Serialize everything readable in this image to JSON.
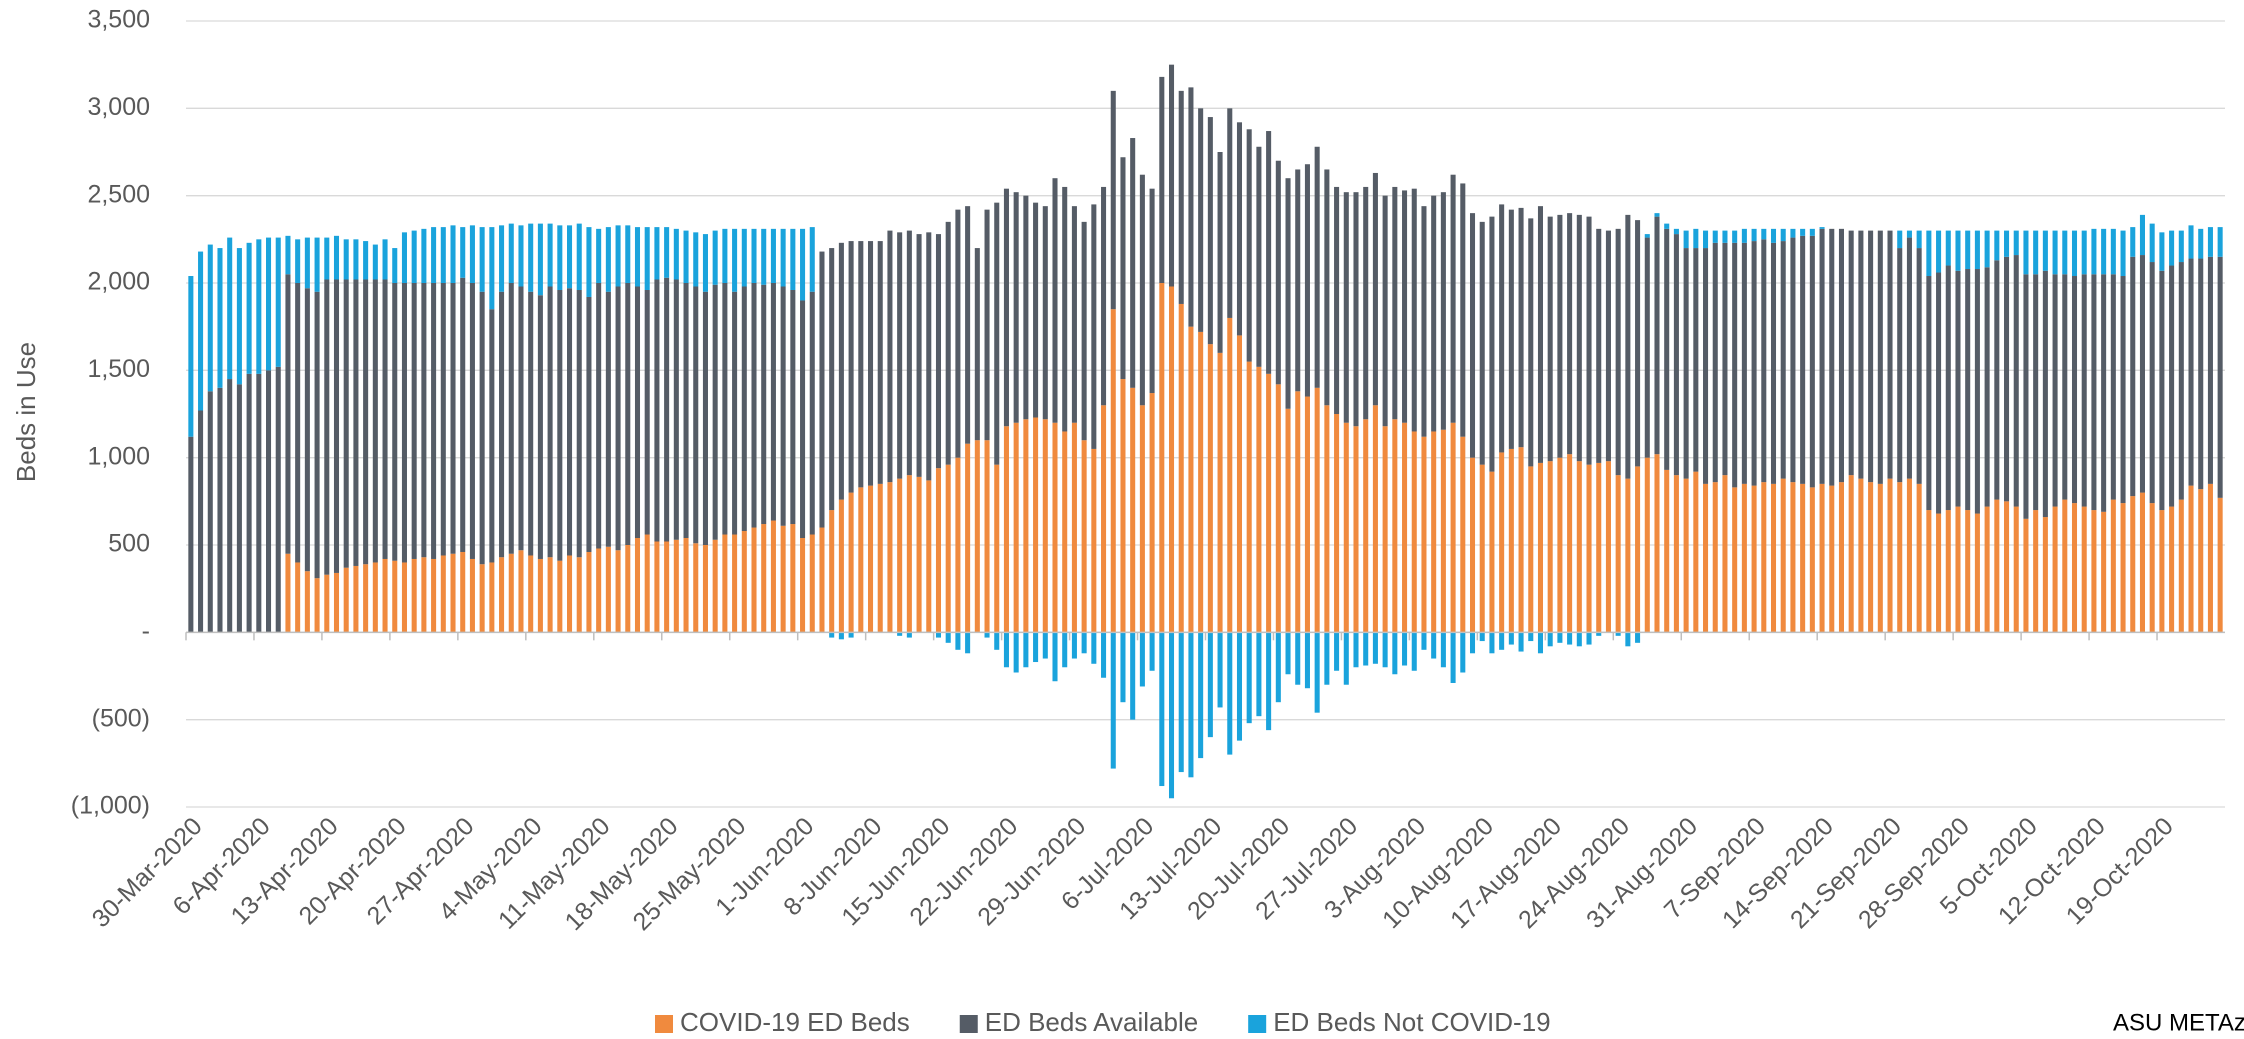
{
  "chart_data": {
    "type": "stacked_bar",
    "y_label": "Beds in Use",
    "annotation": "ASU METAz",
    "legend": "bottom",
    "grid": true,
    "ylim": [
      -1000,
      3500
    ],
    "yticks": [
      {
        "value": 3500,
        "label": "3,500"
      },
      {
        "value": 3000,
        "label": "3,000"
      },
      {
        "value": 2500,
        "label": "2,500"
      },
      {
        "value": 2000,
        "label": "2,000"
      },
      {
        "value": 1500,
        "label": "1,500"
      },
      {
        "value": 1000,
        "label": "1,000"
      },
      500,
      {
        "value": 0,
        "label": "-"
      },
      {
        "value": -500,
        "label": "(500)"
      },
      {
        "value": -1000,
        "label": "(1,000)"
      }
    ],
    "categories": [
      "30-Mar-2020",
      null,
      null,
      null,
      null,
      null,
      null,
      "6-Apr-2020",
      null,
      null,
      null,
      null,
      null,
      null,
      "13-Apr-2020",
      null,
      null,
      null,
      null,
      null,
      null,
      "20-Apr-2020",
      null,
      null,
      null,
      null,
      null,
      null,
      "27-Apr-2020",
      null,
      null,
      null,
      null,
      null,
      null,
      "4-May-2020",
      null,
      null,
      null,
      null,
      null,
      null,
      "11-May-2020",
      null,
      null,
      null,
      null,
      null,
      null,
      "18-May-2020",
      null,
      null,
      null,
      null,
      null,
      null,
      "25-May-2020",
      null,
      null,
      null,
      null,
      null,
      null,
      "1-Jun-2020",
      null,
      null,
      null,
      null,
      null,
      null,
      "8-Jun-2020",
      null,
      null,
      null,
      null,
      null,
      null,
      "15-Jun-2020",
      null,
      null,
      null,
      null,
      null,
      null,
      "22-Jun-2020",
      null,
      null,
      null,
      null,
      null,
      null,
      "29-Jun-2020",
      null,
      null,
      null,
      null,
      null,
      null,
      "6-Jul-2020",
      null,
      null,
      null,
      null,
      null,
      null,
      "13-Jul-2020",
      null,
      null,
      null,
      null,
      null,
      null,
      "20-Jul-2020",
      null,
      null,
      null,
      null,
      null,
      null,
      "27-Jul-2020",
      null,
      null,
      null,
      null,
      null,
      null,
      "3-Aug-2020",
      null,
      null,
      null,
      null,
      null,
      null,
      "10-Aug-2020",
      null,
      null,
      null,
      null,
      null,
      null,
      "17-Aug-2020",
      null,
      null,
      null,
      null,
      null,
      null,
      "24-Aug-2020",
      null,
      null,
      null,
      null,
      null,
      null,
      "31-Aug-2020",
      null,
      null,
      null,
      null,
      null,
      null,
      "7-Sep-2020",
      null,
      null,
      null,
      null,
      null,
      null,
      "14-Sep-2020",
      null,
      null,
      null,
      null,
      null,
      null,
      "21-Sep-2020",
      null,
      null,
      null,
      null,
      null,
      null,
      "28-Sep-2020",
      null,
      null,
      null,
      null,
      null,
      null,
      "5-Oct-2020",
      null,
      null,
      null,
      null,
      null,
      null,
      "12-Oct-2020",
      null,
      null,
      null,
      null,
      null,
      null,
      "19-Oct-2020",
      null,
      null,
      null,
      null,
      null,
      null
    ],
    "series": [
      {
        "name": "COVID-19 ED Beds",
        "color": "#f08a3e",
        "values": [
          0,
          0,
          0,
          0,
          0,
          0,
          0,
          0,
          0,
          0,
          450,
          400,
          350,
          310,
          330,
          340,
          370,
          380,
          390,
          400,
          420,
          410,
          400,
          420,
          430,
          420,
          440,
          450,
          460,
          420,
          390,
          400,
          430,
          450,
          470,
          440,
          420,
          430,
          410,
          440,
          430,
          460,
          480,
          490,
          470,
          500,
          540,
          560,
          520,
          520,
          530,
          540,
          510,
          500,
          530,
          560,
          560,
          580,
          600,
          620,
          640,
          610,
          620,
          540,
          560,
          600,
          700,
          760,
          800,
          830,
          840,
          850,
          860,
          880,
          900,
          890,
          870,
          940,
          960,
          1000,
          1080,
          1100,
          1100,
          960,
          1180,
          1200,
          1220,
          1230,
          1220,
          1200,
          1150,
          1200,
          1100,
          1050,
          1300,
          1850,
          1450,
          1400,
          1300,
          1370,
          2000,
          1980,
          1880,
          1750,
          1720,
          1650,
          1600,
          1800,
          1700,
          1550,
          1520,
          1480,
          1420,
          1280,
          1380,
          1350,
          1400,
          1300,
          1250,
          1200,
          1180,
          1220,
          1300,
          1180,
          1220,
          1200,
          1150,
          1120,
          1150,
          1160,
          1200,
          1120,
          1000,
          960,
          920,
          1030,
          1050,
          1060,
          950,
          970,
          980,
          1000,
          1020,
          980,
          960,
          970,
          980,
          900,
          880,
          950,
          1000,
          1020,
          930,
          900,
          880,
          920,
          850,
          860,
          900,
          830,
          850,
          840,
          860,
          850,
          880,
          860,
          850,
          830,
          850,
          840,
          860,
          900,
          880,
          860,
          850,
          880,
          860,
          880,
          850,
          700,
          680,
          700,
          720,
          700,
          680,
          720,
          760,
          750,
          720,
          650,
          700,
          660,
          720,
          760,
          740,
          720,
          700,
          690,
          760,
          740,
          780,
          800,
          740,
          700,
          720,
          760,
          840,
          820,
          850,
          770
        ]
      },
      {
        "name": "ED Beds Available",
        "color": "#555c66",
        "values": [
          1120,
          1270,
          1380,
          1400,
          1450,
          1420,
          1480,
          1480,
          1500,
          1520,
          1600,
          1600,
          1620,
          1640,
          1690,
          1680,
          1650,
          1640,
          1630,
          1620,
          1600,
          1590,
          1600,
          1580,
          1570,
          1580,
          1560,
          1550,
          1570,
          1580,
          1560,
          1450,
          1520,
          1550,
          1510,
          1510,
          1510,
          1550,
          1550,
          1530,
          1530,
          1460,
          1520,
          1460,
          1510,
          1500,
          1440,
          1400,
          1500,
          1510,
          1490,
          1460,
          1470,
          1450,
          1460,
          1440,
          1390,
          1400,
          1400,
          1370,
          1360,
          1370,
          1340,
          1360,
          1390,
          1580,
          1500,
          1470,
          1440,
          1410,
          1400,
          1390,
          1440,
          1410,
          1400,
          1390,
          1420,
          1340,
          1390,
          1420,
          1360,
          1100,
          1320,
          1500,
          1360,
          1320,
          1280,
          1230,
          1220,
          1400,
          1400,
          1240,
          1250,
          1400,
          1250,
          1250,
          1270,
          1430,
          1320,
          1170,
          1180,
          1270,
          1220,
          1370,
          1280,
          1300,
          1150,
          1200,
          1220,
          1330,
          1260,
          1390,
          1280,
          1320,
          1270,
          1330,
          1380,
          1350,
          1300,
          1320,
          1340,
          1330,
          1330,
          1320,
          1330,
          1330,
          1390,
          1320,
          1350,
          1360,
          1420,
          1450,
          1400,
          1390,
          1460,
          1420,
          1370,
          1370,
          1420,
          1470,
          1400,
          1390,
          1380,
          1410,
          1420,
          1340,
          1320,
          1410,
          1510,
          1410,
          1260,
          1360,
          1380,
          1380,
          1320,
          1280,
          1350,
          1370,
          1330,
          1400,
          1380,
          1400,
          1390,
          1380,
          1360,
          1400,
          1420,
          1440,
          1460,
          1470,
          1450,
          1400,
          1420,
          1440,
          1450,
          1420,
          1340,
          1380,
          1350,
          1340,
          1380,
          1400,
          1350,
          1380,
          1400,
          1370,
          1370,
          1400,
          1440,
          1400,
          1350,
          1410,
          1330,
          1290,
          1300,
          1330,
          1350,
          1360,
          1290,
          1300,
          1370,
          1360,
          1380,
          1370,
          1380,
          1360,
          1300,
          1320,
          1300,
          1380
        ]
      },
      {
        "name": "ED Beds Not COVID-19",
        "color": "#1aa3dc",
        "values": [
          920,
          910,
          840,
          800,
          810,
          780,
          750,
          770,
          760,
          740,
          220,
          250,
          290,
          310,
          240,
          250,
          230,
          230,
          220,
          200,
          230,
          200,
          290,
          300,
          310,
          320,
          320,
          330,
          290,
          330,
          370,
          470,
          380,
          340,
          350,
          390,
          410,
          360,
          370,
          360,
          380,
          400,
          310,
          370,
          350,
          330,
          340,
          360,
          300,
          290,
          290,
          300,
          310,
          330,
          310,
          310,
          360,
          330,
          310,
          320,
          310,
          330,
          350,
          410,
          370,
          0,
          -30,
          -40,
          -30,
          0,
          0,
          0,
          0,
          -20,
          -30,
          0,
          0,
          -30,
          -60,
          -100,
          -120,
          0,
          -30,
          -100,
          -200,
          -230,
          -200,
          -170,
          -150,
          -280,
          -200,
          -150,
          -120,
          -180,
          -260,
          -780,
          -400,
          -500,
          -310,
          -220,
          -880,
          -950,
          -800,
          -830,
          -720,
          -600,
          -430,
          -700,
          -620,
          -520,
          -480,
          -560,
          -400,
          -240,
          -300,
          -320,
          -460,
          -300,
          -220,
          -300,
          -200,
          -190,
          -180,
          -200,
          -240,
          -190,
          -220,
          -100,
          -150,
          -200,
          -290,
          -230,
          -120,
          -50,
          -120,
          -100,
          -70,
          -110,
          -50,
          -120,
          -80,
          -60,
          -70,
          -80,
          -70,
          -20,
          0,
          -20,
          -80,
          -60,
          20,
          20,
          30,
          30,
          100,
          110,
          100,
          70,
          70,
          70,
          80,
          70,
          60,
          80,
          70,
          50,
          40,
          40,
          10,
          0,
          0,
          0,
          0,
          0,
          0,
          0,
          100,
          40,
          100,
          260,
          240,
          200,
          230,
          220,
          220,
          210,
          170,
          150,
          140,
          250,
          250,
          230,
          250,
          250,
          260,
          250,
          260,
          260,
          260,
          260,
          170,
          230,
          220,
          220,
          200,
          180,
          190,
          170,
          170,
          170
        ]
      }
    ]
  }
}
